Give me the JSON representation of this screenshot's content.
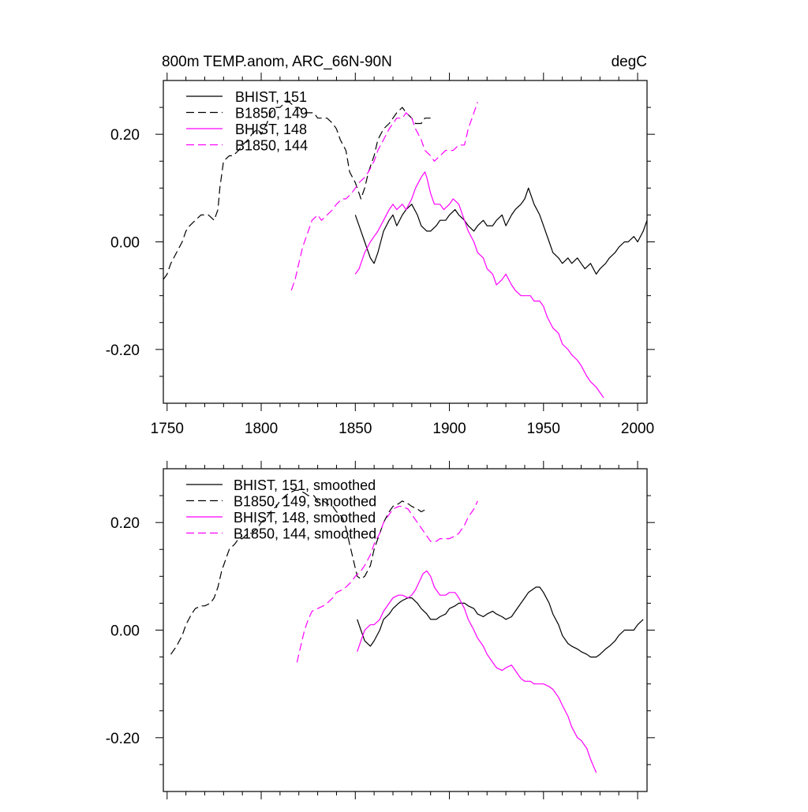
{
  "chart_data": [
    {
      "type": "line",
      "title": "800m TEMP.anom, ARC_66N-90N",
      "units": "degC",
      "xlim": [
        1748,
        2005
      ],
      "ylim": [
        -0.3,
        0.3
      ],
      "xticks": [
        1750,
        1800,
        1850,
        1900,
        1950,
        2000
      ],
      "xtick_labels": [
        "1750",
        "1800",
        "1850",
        "1900",
        "1950",
        "2000"
      ],
      "yticks": [
        -0.2,
        0.0,
        0.2
      ],
      "ytick_labels": [
        "-0.20",
        "0.00",
        "0.20"
      ],
      "legend_position": "top-left",
      "series": [
        {
          "name": "BHIST, 151",
          "color": "#000000",
          "dash": "solid",
          "x": [
            1850,
            1852,
            1855,
            1858,
            1860,
            1862,
            1865,
            1868,
            1870,
            1872,
            1875,
            1877,
            1880,
            1883,
            1885,
            1888,
            1890,
            1893,
            1895,
            1898,
            1900,
            1903,
            1905,
            1908,
            1910,
            1913,
            1915,
            1918,
            1920,
            1923,
            1925,
            1928,
            1930,
            1933,
            1935,
            1938,
            1940,
            1942,
            1945,
            1948,
            1950,
            1953,
            1955,
            1958,
            1960,
            1963,
            1965,
            1968,
            1970,
            1972,
            1975,
            1978,
            1980,
            1983,
            1985,
            1988,
            1990,
            1993,
            1995,
            1998,
            2000,
            2003,
            2005
          ],
          "y": [
            0.05,
            0.03,
            0.0,
            -0.03,
            -0.04,
            -0.02,
            0.02,
            0.04,
            0.05,
            0.03,
            0.05,
            0.06,
            0.07,
            0.05,
            0.03,
            0.02,
            0.02,
            0.03,
            0.04,
            0.04,
            0.05,
            0.06,
            0.05,
            0.04,
            0.03,
            0.02,
            0.03,
            0.04,
            0.03,
            0.03,
            0.04,
            0.05,
            0.03,
            0.05,
            0.06,
            0.07,
            0.08,
            0.1,
            0.07,
            0.05,
            0.03,
            0.0,
            -0.02,
            -0.03,
            -0.04,
            -0.03,
            -0.04,
            -0.03,
            -0.04,
            -0.05,
            -0.04,
            -0.06,
            -0.05,
            -0.04,
            -0.03,
            -0.02,
            -0.01,
            0.0,
            0.0,
            0.01,
            0.0,
            0.02,
            0.04
          ]
        },
        {
          "name": "B1850, 149",
          "color": "#000000",
          "dash": "dashed",
          "x": [
            1748,
            1750,
            1752,
            1755,
            1758,
            1760,
            1762,
            1765,
            1768,
            1770,
            1772,
            1775,
            1777,
            1778,
            1780,
            1783,
            1785,
            1788,
            1790,
            1793,
            1795,
            1798,
            1800,
            1803,
            1805,
            1808,
            1810,
            1813,
            1815,
            1818,
            1820,
            1823,
            1825,
            1828,
            1830,
            1833,
            1835,
            1838,
            1840,
            1842,
            1845,
            1847,
            1850,
            1852,
            1853,
            1855,
            1857,
            1860,
            1862,
            1865,
            1868,
            1870,
            1872,
            1875,
            1877,
            1880,
            1882,
            1885,
            1887,
            1890
          ],
          "y": [
            -0.07,
            -0.06,
            -0.04,
            -0.02,
            0.0,
            0.02,
            0.03,
            0.04,
            0.05,
            0.05,
            0.05,
            0.04,
            0.06,
            0.1,
            0.15,
            0.16,
            0.16,
            0.17,
            0.18,
            0.19,
            0.2,
            0.21,
            0.2,
            0.22,
            0.24,
            0.25,
            0.25,
            0.26,
            0.26,
            0.25,
            0.25,
            0.24,
            0.24,
            0.24,
            0.23,
            0.23,
            0.23,
            0.22,
            0.21,
            0.19,
            0.17,
            0.13,
            0.11,
            0.09,
            0.08,
            0.1,
            0.13,
            0.16,
            0.19,
            0.21,
            0.22,
            0.23,
            0.24,
            0.25,
            0.24,
            0.23,
            0.22,
            0.22,
            0.23,
            0.23
          ]
        },
        {
          "name": "BHIST, 148",
          "color": "#ff00ff",
          "dash": "solid",
          "x": [
            1850,
            1852,
            1855,
            1858,
            1860,
            1862,
            1865,
            1868,
            1870,
            1872,
            1875,
            1877,
            1880,
            1882,
            1885,
            1887,
            1888,
            1890,
            1892,
            1895,
            1897,
            1900,
            1902,
            1905,
            1907,
            1910,
            1913,
            1915,
            1918,
            1920,
            1923,
            1925,
            1928,
            1930,
            1933,
            1935,
            1938,
            1940,
            1943,
            1945,
            1948,
            1950,
            1952,
            1955,
            1958,
            1960,
            1963,
            1965,
            1968,
            1970,
            1973,
            1975,
            1978,
            1980,
            1982
          ],
          "y": [
            -0.06,
            -0.05,
            -0.02,
            0.0,
            0.01,
            0.02,
            0.04,
            0.06,
            0.07,
            0.06,
            0.07,
            0.06,
            0.08,
            0.1,
            0.12,
            0.13,
            0.12,
            0.09,
            0.07,
            0.07,
            0.06,
            0.07,
            0.08,
            0.07,
            0.05,
            0.02,
            0.0,
            -0.02,
            -0.03,
            -0.05,
            -0.06,
            -0.08,
            -0.07,
            -0.06,
            -0.08,
            -0.09,
            -0.1,
            -0.1,
            -0.1,
            -0.11,
            -0.11,
            -0.12,
            -0.14,
            -0.16,
            -0.17,
            -0.19,
            -0.2,
            -0.21,
            -0.22,
            -0.23,
            -0.25,
            -0.26,
            -0.27,
            -0.28,
            -0.29
          ]
        },
        {
          "name": "B1850, 144",
          "color": "#ff00ff",
          "dash": "dashed",
          "x": [
            1816,
            1818,
            1820,
            1822,
            1825,
            1827,
            1830,
            1832,
            1835,
            1838,
            1840,
            1843,
            1845,
            1848,
            1850,
            1852,
            1855,
            1857,
            1860,
            1862,
            1865,
            1868,
            1870,
            1872,
            1875,
            1877,
            1880,
            1882,
            1885,
            1887,
            1890,
            1892,
            1895,
            1898,
            1900,
            1902,
            1905,
            1908,
            1910,
            1913,
            1915
          ],
          "y": [
            -0.09,
            -0.07,
            -0.04,
            -0.01,
            0.02,
            0.04,
            0.05,
            0.04,
            0.05,
            0.06,
            0.07,
            0.08,
            0.08,
            0.09,
            0.1,
            0.11,
            0.12,
            0.13,
            0.15,
            0.17,
            0.19,
            0.21,
            0.22,
            0.23,
            0.23,
            0.24,
            0.23,
            0.21,
            0.19,
            0.17,
            0.16,
            0.15,
            0.16,
            0.17,
            0.17,
            0.17,
            0.18,
            0.18,
            0.21,
            0.24,
            0.26
          ]
        }
      ]
    },
    {
      "type": "line",
      "xlim": [
        1748,
        2005
      ],
      "ylim": [
        -0.3,
        0.3
      ],
      "xticks": [
        1750,
        1800,
        1850,
        1900,
        1950,
        2000
      ],
      "yticks": [
        -0.2,
        0.0,
        0.2
      ],
      "ytick_labels": [
        "-0.20",
        "0.00",
        "0.20"
      ],
      "legend_position": "top-left",
      "series": [
        {
          "name": "BHIST, 151, smoothed",
          "color": "#000000",
          "dash": "solid",
          "x": [
            1851,
            1853,
            1855,
            1858,
            1860,
            1863,
            1865,
            1868,
            1870,
            1873,
            1875,
            1878,
            1880,
            1883,
            1885,
            1888,
            1890,
            1893,
            1895,
            1898,
            1900,
            1903,
            1905,
            1908,
            1910,
            1913,
            1915,
            1918,
            1920,
            1923,
            1925,
            1928,
            1930,
            1933,
            1935,
            1938,
            1940,
            1942,
            1944,
            1946,
            1948,
            1950,
            1953,
            1955,
            1958,
            1960,
            1963,
            1965,
            1968,
            1970,
            1973,
            1975,
            1978,
            1980,
            1983,
            1985,
            1988,
            1990,
            1993,
            1995,
            1998,
            2000,
            2003
          ],
          "y": [
            0.02,
            0.0,
            -0.02,
            -0.03,
            -0.02,
            0.0,
            0.02,
            0.03,
            0.04,
            0.05,
            0.055,
            0.06,
            0.06,
            0.05,
            0.04,
            0.03,
            0.02,
            0.02,
            0.025,
            0.03,
            0.04,
            0.045,
            0.05,
            0.05,
            0.045,
            0.04,
            0.03,
            0.025,
            0.03,
            0.035,
            0.03,
            0.025,
            0.02,
            0.025,
            0.035,
            0.05,
            0.06,
            0.07,
            0.075,
            0.08,
            0.08,
            0.07,
            0.05,
            0.03,
            0.01,
            -0.01,
            -0.025,
            -0.03,
            -0.035,
            -0.04,
            -0.045,
            -0.05,
            -0.05,
            -0.045,
            -0.035,
            -0.03,
            -0.02,
            -0.01,
            0.0,
            0.0,
            0.0,
            0.01,
            0.02
          ]
        },
        {
          "name": "B1850, 149, smoothed",
          "color": "#000000",
          "dash": "dashed",
          "x": [
            1752,
            1755,
            1758,
            1760,
            1763,
            1765,
            1768,
            1770,
            1773,
            1775,
            1777,
            1779,
            1781,
            1783,
            1786,
            1788,
            1790,
            1793,
            1795,
            1798,
            1800,
            1803,
            1805,
            1808,
            1810,
            1813,
            1815,
            1818,
            1820,
            1823,
            1825,
            1828,
            1830,
            1833,
            1835,
            1838,
            1840,
            1843,
            1845,
            1847,
            1849,
            1851,
            1853,
            1855,
            1858,
            1860,
            1863,
            1865,
            1868,
            1870,
            1873,
            1875,
            1878,
            1880,
            1883,
            1885,
            1888
          ],
          "y": [
            -0.045,
            -0.03,
            -0.01,
            0.01,
            0.03,
            0.04,
            0.045,
            0.045,
            0.05,
            0.06,
            0.08,
            0.11,
            0.13,
            0.15,
            0.16,
            0.17,
            0.17,
            0.18,
            0.18,
            0.19,
            0.2,
            0.21,
            0.22,
            0.23,
            0.24,
            0.25,
            0.255,
            0.26,
            0.26,
            0.255,
            0.25,
            0.25,
            0.24,
            0.24,
            0.235,
            0.23,
            0.22,
            0.21,
            0.19,
            0.16,
            0.13,
            0.1,
            0.095,
            0.1,
            0.12,
            0.15,
            0.18,
            0.2,
            0.22,
            0.23,
            0.235,
            0.24,
            0.235,
            0.23,
            0.225,
            0.22,
            0.225
          ]
        },
        {
          "name": "BHIST, 148, smoothed",
          "color": "#ff00ff",
          "dash": "solid",
          "x": [
            1851,
            1853,
            1855,
            1858,
            1860,
            1863,
            1865,
            1868,
            1870,
            1873,
            1875,
            1878,
            1880,
            1882,
            1884,
            1886,
            1888,
            1890,
            1892,
            1895,
            1898,
            1900,
            1903,
            1905,
            1908,
            1910,
            1913,
            1915,
            1918,
            1920,
            1923,
            1925,
            1928,
            1930,
            1933,
            1935,
            1938,
            1940,
            1943,
            1945,
            1948,
            1950,
            1953,
            1955,
            1958,
            1960,
            1963,
            1965,
            1968,
            1970,
            1973,
            1975,
            1978
          ],
          "y": [
            -0.04,
            -0.02,
            0.0,
            0.01,
            0.01,
            0.02,
            0.035,
            0.05,
            0.06,
            0.065,
            0.065,
            0.06,
            0.065,
            0.075,
            0.09,
            0.105,
            0.11,
            0.1,
            0.08,
            0.065,
            0.065,
            0.07,
            0.07,
            0.06,
            0.04,
            0.02,
            0.0,
            -0.015,
            -0.03,
            -0.045,
            -0.06,
            -0.07,
            -0.075,
            -0.07,
            -0.065,
            -0.075,
            -0.09,
            -0.095,
            -0.095,
            -0.1,
            -0.1,
            -0.1,
            -0.105,
            -0.11,
            -0.125,
            -0.14,
            -0.16,
            -0.18,
            -0.2,
            -0.205,
            -0.22,
            -0.24,
            -0.265
          ]
        },
        {
          "name": "B1850, 144, smoothed",
          "color": "#ff00ff",
          "dash": "dashed",
          "x": [
            1819,
            1821,
            1823,
            1825,
            1827,
            1830,
            1833,
            1835,
            1838,
            1840,
            1843,
            1845,
            1848,
            1850,
            1853,
            1855,
            1858,
            1860,
            1863,
            1865,
            1868,
            1870,
            1873,
            1875,
            1878,
            1880,
            1883,
            1885,
            1888,
            1890,
            1893,
            1895,
            1898,
            1900,
            1903,
            1905,
            1908,
            1910,
            1913,
            1915
          ],
          "y": [
            -0.06,
            -0.03,
            0.0,
            0.02,
            0.035,
            0.04,
            0.045,
            0.05,
            0.06,
            0.07,
            0.075,
            0.08,
            0.09,
            0.1,
            0.11,
            0.12,
            0.14,
            0.16,
            0.18,
            0.2,
            0.215,
            0.225,
            0.23,
            0.23,
            0.225,
            0.215,
            0.2,
            0.19,
            0.175,
            0.165,
            0.165,
            0.17,
            0.17,
            0.17,
            0.175,
            0.18,
            0.195,
            0.21,
            0.225,
            0.24
          ]
        }
      ]
    }
  ]
}
